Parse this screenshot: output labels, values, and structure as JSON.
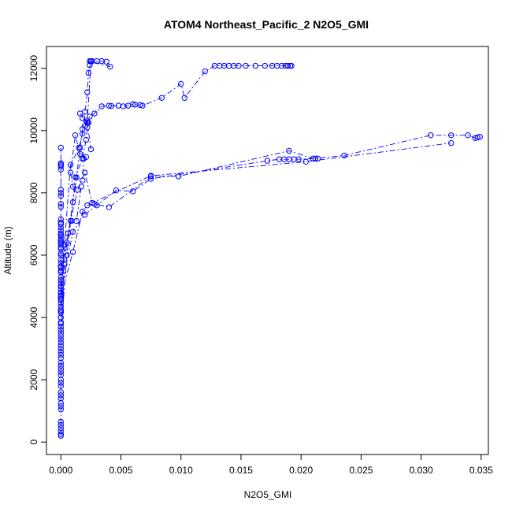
{
  "chart_data": {
    "type": "scatter",
    "title": "ATOM4 Northeast_Pacific_2 N2O5_GMI",
    "xlabel": "N2O5_GMI",
    "ylabel": "Altitude (m)",
    "xlim": [
      -0.0012,
      0.0356
    ],
    "ylim": [
      -400,
      12700
    ],
    "x_ticks": [
      "0.000",
      "0.005",
      "0.010",
      "0.015",
      "0.020",
      "0.025",
      "0.030",
      "0.035"
    ],
    "x_tick_values": [
      0,
      0.005,
      0.01,
      0.015,
      0.02,
      0.025,
      0.03,
      0.035
    ],
    "y_ticks": [
      "0",
      "2000",
      "4000",
      "6000",
      "8000",
      "10000",
      "12000"
    ],
    "y_tick_values": [
      0,
      2000,
      4000,
      6000,
      8000,
      10000,
      12000
    ],
    "color": "#0000ff",
    "marker": "open-circle",
    "line_style": "dash-dot",
    "series": [
      {
        "x": [
          0.0,
          0.0,
          0.0,
          0.0,
          0.0,
          0.0,
          0.0,
          0.0,
          0.0,
          0.0,
          0.0,
          0.0,
          0.0,
          0.0,
          0.0,
          0.0,
          0.0,
          0.0,
          0.0,
          0.0,
          0.0,
          0.0,
          0.0,
          0.0,
          0.0,
          0.0,
          0.0,
          0.0,
          0.0,
          0.0,
          0.0,
          0.0,
          0.0,
          0.0,
          0.0,
          0.0,
          0.0,
          0.0,
          0.0,
          0.0,
          0.0,
          0.0,
          0.0,
          0.0,
          0.0,
          0.0,
          0.0,
          0.0,
          0.0,
          0.0,
          0.0,
          0.0,
          0.0,
          0.0,
          0.0,
          0.0,
          0.0,
          0.0,
          0.0,
          0.0,
          0.0,
          0.0,
          0.0,
          0.0,
          0.0,
          0.0,
          0.0,
          0.0,
          0.0,
          0.0,
          0.0,
          0.0,
          0.0,
          0.0,
          0.0,
          0.0,
          0.0,
          0.0,
          0.0,
          0.0
        ],
        "y": [
          200,
          250,
          350,
          450,
          550,
          650,
          1050,
          1150,
          1250,
          1400,
          1500,
          1600,
          1800,
          1900,
          2000,
          2150,
          2250,
          2350,
          2450,
          2550,
          2700,
          2800,
          2900,
          3000,
          3100,
          3200,
          3300,
          3400,
          3600,
          3700,
          3800,
          3850,
          4000,
          4150,
          4200,
          4250,
          4350,
          4450,
          4550,
          4650,
          4700,
          4800,
          4900,
          5000,
          5100,
          5200,
          5300,
          5450,
          5600,
          5650,
          5750,
          5850,
          6000,
          6050,
          6200,
          6250,
          6350,
          6450,
          6500,
          6600,
          6700,
          6800,
          6900,
          7000,
          7050,
          7150,
          7550,
          7650,
          7900,
          8000,
          8100,
          8750,
          8850,
          8900,
          8950,
          9450,
          5000,
          5200,
          6400,
          6650
        ]
      },
      {
        "x": [
          0.0,
          0.0003,
          0.0008,
          0.0015,
          0.0018,
          0.002,
          0.0022,
          0.0024,
          0.0028,
          0.0034,
          0.004,
          0.0042,
          0.0048,
          0.0052,
          0.0056,
          0.006,
          0.0062,
          0.0066,
          0.0068,
          0.0084,
          0.01,
          0.0103,
          0.012,
          0.0128,
          0.0132,
          0.0136,
          0.014,
          0.0144,
          0.0148,
          0.0154,
          0.0162,
          0.017,
          0.0176,
          0.018,
          0.0184,
          0.0187,
          0.0189,
          0.0191,
          0.0192
        ],
        "y": [
          4600,
          6350,
          8900,
          9450,
          9900,
          10150,
          10250,
          10450,
          10550,
          10780,
          10800,
          10790,
          10800,
          10780,
          10800,
          10850,
          10830,
          10820,
          10800,
          11050,
          11500,
          11050,
          11900,
          12080,
          12080,
          12080,
          12080,
          12080,
          12080,
          12080,
          12080,
          12080,
          12080,
          12080,
          12080,
          12080,
          12080,
          12080,
          12080
        ]
      },
      {
        "x": [
          0.0,
          0.0005,
          0.001,
          0.0013,
          0.0016,
          0.0018,
          0.002,
          0.0022,
          0.0023,
          0.0024,
          0.0025,
          0.0026,
          0.003,
          0.0034,
          0.0038,
          0.0041,
          0.0024,
          0.0025,
          0.0022
        ],
        "y": [
          5000,
          6400,
          7700,
          8500,
          9450,
          10050,
          10600,
          11230,
          11850,
          12100,
          12230,
          12230,
          12230,
          12230,
          12210,
          12050,
          12230,
          12230,
          10300
        ]
      },
      {
        "x": [
          0.0,
          0.001,
          0.0018,
          0.0022,
          0.0028,
          0.004,
          0.0075,
          0.0098,
          0.019,
          0.021,
          0.0236,
          0.0308,
          0.0325,
          0.0339,
          0.0345,
          0.0347,
          0.0349
        ],
        "y": [
          4700,
          6100,
          7400,
          7600,
          7650,
          7540,
          8530,
          8530,
          9350,
          9100,
          9200,
          9850,
          9850,
          9850,
          9760,
          9780,
          9800
        ]
      },
      {
        "x": [
          0.0,
          0.001,
          0.002,
          0.003,
          0.0046,
          0.006,
          0.0075,
          0.0172,
          0.0182,
          0.0186,
          0.019,
          0.0194,
          0.0198,
          0.0212,
          0.0214
        ],
        "y": [
          4800,
          6750,
          7300,
          7600,
          8080,
          8050,
          8450,
          9030,
          9080,
          9080,
          9080,
          9080,
          9080,
          9100,
          9100
        ]
      },
      {
        "x": [
          0.0,
          0.0008,
          0.0014,
          0.002,
          0.0026,
          0.0075,
          0.0204,
          0.0325
        ],
        "y": [
          5500,
          7100,
          8100,
          8650,
          7680,
          8550,
          9000,
          9600
        ]
      },
      {
        "x": [
          0.0,
          0.0005,
          0.0012,
          0.0018,
          0.0021,
          0.0022,
          0.0023,
          0.0018,
          0.0016,
          0.0022,
          0.0025
        ],
        "y": [
          3500,
          6000,
          8500,
          9100,
          9700,
          10100,
          10250,
          10400,
          10550,
          10250,
          9400
        ]
      },
      {
        "x": [
          0.0,
          0.0003,
          0.0006,
          0.0009,
          0.0013,
          0.0017,
          0.001,
          0.0008,
          0.0012,
          0.0016,
          0.0021,
          0.0019,
          0.0018
        ],
        "y": [
          4000,
          5700,
          6700,
          7100,
          7100,
          8200,
          8200,
          8650,
          9850,
          9250,
          9150,
          9100,
          8400
        ]
      }
    ]
  }
}
